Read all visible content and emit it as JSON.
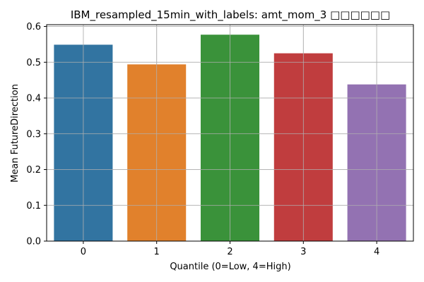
{
  "chart_data": {
    "type": "bar",
    "title": "IBM_resampled_15min_with_labels: amt_mom_3 □□□□□□",
    "xlabel": "Quantile (0=Low, 4=High)",
    "ylabel": "Mean FutureDirection",
    "categories": [
      "0",
      "1",
      "2",
      "3",
      "4"
    ],
    "values": [
      0.549,
      0.494,
      0.577,
      0.525,
      0.438
    ],
    "colors": [
      "#3274a1",
      "#e1812c",
      "#3a923a",
      "#c03d3e",
      "#9372b2"
    ],
    "ylim": [
      0,
      0.605
    ],
    "yticks": [
      "0.0",
      "0.1",
      "0.2",
      "0.3",
      "0.4",
      "0.5",
      "0.6"
    ],
    "grid": true,
    "legend": "none"
  }
}
